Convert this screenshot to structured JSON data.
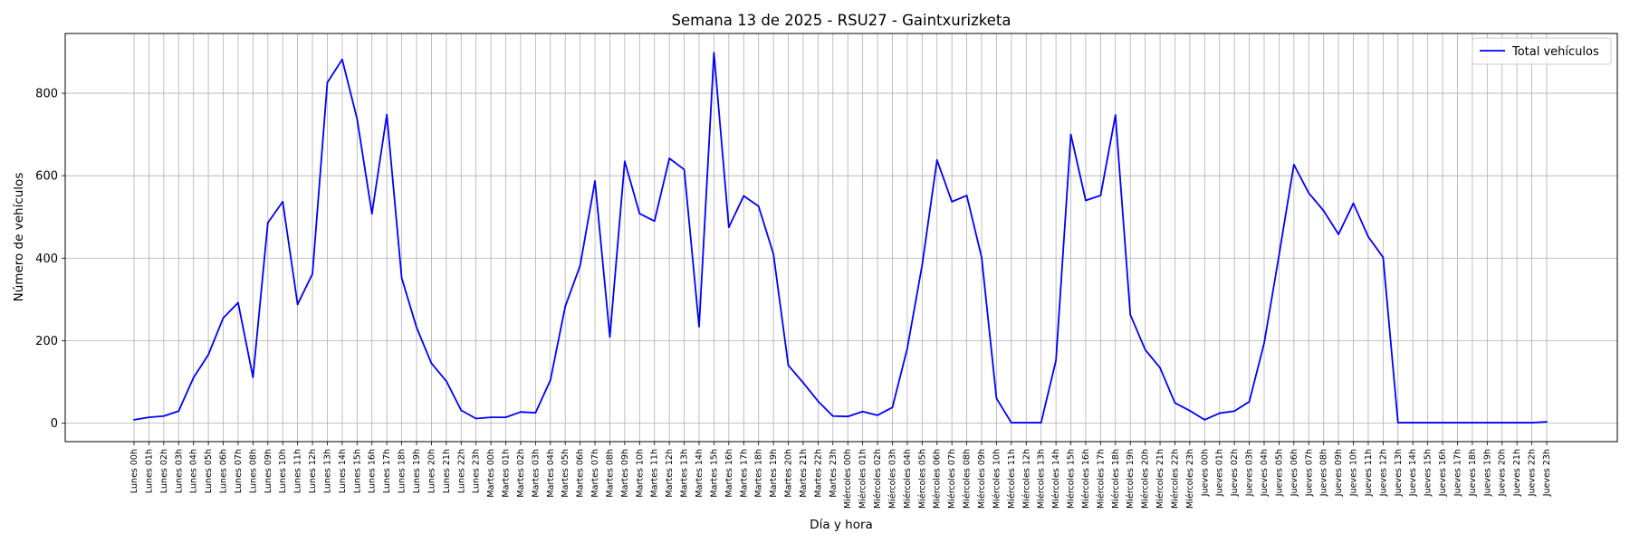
{
  "chart_data": {
    "type": "line",
    "title": "Semana 13 de 2025 - RSU27 - Gaintxurizketa",
    "xlabel": "Día y hora",
    "ylabel": "Número de vehículos",
    "ylim": [
      -45,
      945
    ],
    "yticks": [
      0,
      200,
      400,
      600,
      800
    ],
    "grid": true,
    "legend_position": "top-right",
    "series_color": "#0000ff",
    "categories": [
      "Lunes 00h",
      "Lunes 01h",
      "Lunes 02h",
      "Lunes 03h",
      "Lunes 04h",
      "Lunes 05h",
      "Lunes 06h",
      "Lunes 07h",
      "Lunes 08h",
      "Lunes 09h",
      "Lunes 10h",
      "Lunes 11h",
      "Lunes 12h",
      "Lunes 13h",
      "Lunes 14h",
      "Lunes 15h",
      "Lunes 16h",
      "Lunes 17h",
      "Lunes 18h",
      "Lunes 19h",
      "Lunes 20h",
      "Lunes 21h",
      "Lunes 22h",
      "Lunes 23h",
      "Martes 00h",
      "Martes 01h",
      "Martes 02h",
      "Martes 03h",
      "Martes 04h",
      "Martes 05h",
      "Martes 06h",
      "Martes 07h",
      "Martes 08h",
      "Martes 09h",
      "Martes 10h",
      "Martes 11h",
      "Martes 12h",
      "Martes 13h",
      "Martes 14h",
      "Martes 15h",
      "Martes 16h",
      "Martes 17h",
      "Martes 18h",
      "Martes 19h",
      "Martes 20h",
      "Martes 21h",
      "Martes 22h",
      "Martes 23h",
      "Miércoles 00h",
      "Miércoles 01h",
      "Miércoles 02h",
      "Miércoles 03h",
      "Miércoles 04h",
      "Miércoles 05h",
      "Miércoles 06h",
      "Miércoles 07h",
      "Miércoles 08h",
      "Miércoles 09h",
      "Miércoles 10h",
      "Miércoles 11h",
      "Miércoles 12h",
      "Miércoles 13h",
      "Miércoles 14h",
      "Miércoles 15h",
      "Miércoles 16h",
      "Miércoles 17h",
      "Miércoles 18h",
      "Miércoles 19h",
      "Miércoles 20h",
      "Miércoles 21h",
      "Miércoles 22h",
      "Miércoles 23h",
      "Jueves 00h",
      "Jueves 01h",
      "Jueves 02h",
      "Jueves 03h",
      "Jueves 04h",
      "Jueves 05h",
      "Jueves 06h",
      "Jueves 07h",
      "Jueves 08h",
      "Jueves 09h",
      "Jueves 10h",
      "Jueves 11h",
      "Jueves 12h",
      "Jueves 13h",
      "Jueves 14h",
      "Jueves 15h",
      "Jueves 16h",
      "Jueves 17h",
      "Jueves 18h",
      "Jueves 19h",
      "Jueves 20h",
      "Jueves 21h",
      "Jueves 22h",
      "Jueves 23h"
    ],
    "series": [
      {
        "name": "Total vehículos",
        "values": [
          8,
          14,
          17,
          29,
          110,
          166,
          255,
          292,
          111,
          486,
          537,
          288,
          362,
          826,
          882,
          738,
          508,
          748,
          352,
          232,
          145,
          102,
          31,
          11,
          14,
          14,
          27,
          25,
          104,
          283,
          382,
          587,
          209,
          635,
          508,
          490,
          642,
          615,
          234,
          898,
          475,
          551,
          526,
          410,
          140,
          98,
          53,
          17,
          16,
          28,
          19,
          38,
          181,
          383,
          638,
          537,
          552,
          402,
          60,
          1,
          1,
          1,
          152,
          700,
          540,
          552,
          747,
          263,
          178,
          134,
          49,
          30,
          8,
          24,
          29,
          52,
          194,
          407,
          627,
          558,
          515,
          458,
          533,
          452,
          402,
          1,
          1,
          1,
          1,
          1,
          1,
          1,
          1,
          1,
          1,
          3
        ]
      }
    ]
  }
}
